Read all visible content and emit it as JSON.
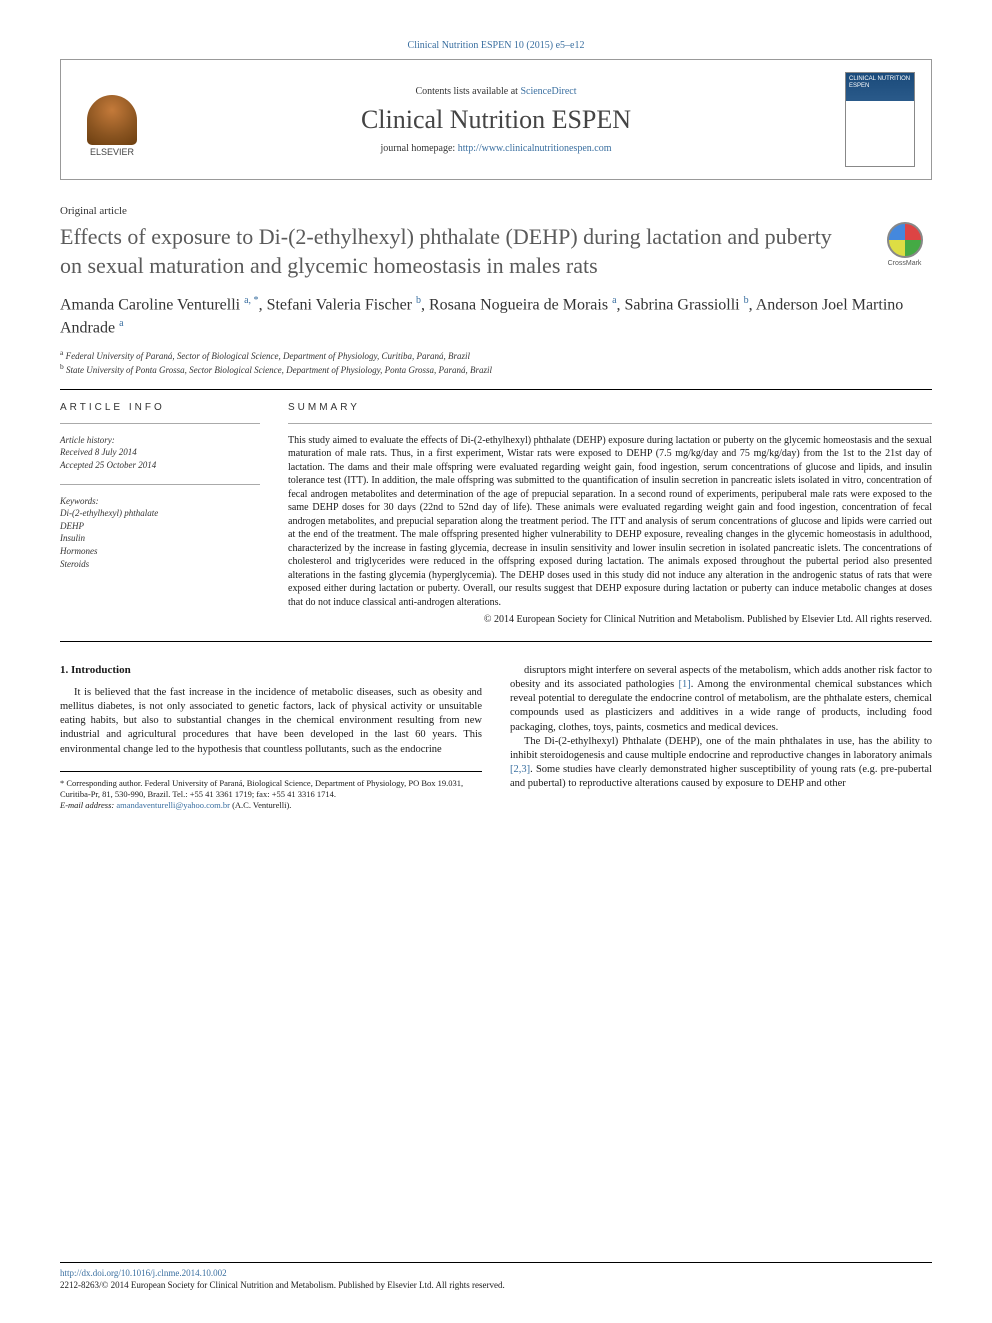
{
  "header": {
    "citation": "Clinical Nutrition ESPEN 10 (2015) e5–e12",
    "contents_prefix": "Contents lists available at ",
    "contents_link": "ScienceDirect",
    "journal_name": "Clinical Nutrition ESPEN",
    "homepage_prefix": "journal homepage: ",
    "homepage_url": "http://www.clinicalnutritionespen.com",
    "elsevier_label": "ELSEVIER",
    "cover_label": "CLINICAL NUTRITION ESPEN"
  },
  "crossmark": "CrossMark",
  "article": {
    "type": "Original article",
    "title": "Effects of exposure to Di-(2-ethylhexyl) phthalate (DEHP) during lactation and puberty on sexual maturation and glycemic homeostasis in males rats",
    "authors_html": "Amanda Caroline Venturelli <sup>a, *</sup>, Stefani Valeria Fischer <sup>b</sup>, Rosana Nogueira de Morais <sup>a</sup>, Sabrina Grassiolli <sup>b</sup>, Anderson Joel Martino Andrade <sup>a</sup>",
    "affiliations": {
      "a": "Federal University of Paraná, Sector of Biological Science, Department of Physiology, Curitiba, Paraná, Brazil",
      "b": "State University of Ponta Grossa, Sector Biological Science, Department of Physiology, Ponta Grossa, Paraná, Brazil"
    }
  },
  "info": {
    "heading": "ARTICLE INFO",
    "history_label": "Article history:",
    "received": "Received 8 July 2014",
    "accepted": "Accepted 25 October 2014",
    "keywords_label": "Keywords:",
    "keywords": [
      "Di-(2-ethylhexyl) phthalate",
      "DEHP",
      "Insulin",
      "Hormones",
      "Steroids"
    ]
  },
  "summary": {
    "heading": "SUMMARY",
    "text": "This study aimed to evaluate the effects of Di-(2-ethylhexyl) phthalate (DEHP) exposure during lactation or puberty on the glycemic homeostasis and the sexual maturation of male rats. Thus, in a first experiment, Wistar rats were exposed to DEHP (7.5 mg/kg/day and 75 mg/kg/day) from the 1st to the 21st day of lactation. The dams and their male offspring were evaluated regarding weight gain, food ingestion, serum concentrations of glucose and lipids, and insulin tolerance test (ITT). In addition, the male offspring was submitted to the quantification of insulin secretion in pancreatic islets isolated in vitro, concentration of fecal androgen metabolites and determination of the age of prepucial separation. In a second round of experiments, peripuberal male rats were exposed to the same DEHP doses for 30 days (22nd to 52nd day of life). These animals were evaluated regarding weight gain and food ingestion, concentration of fecal androgen metabolites, and prepucial separation along the treatment period. The ITT and analysis of serum concentrations of glucose and lipids were carried out at the end of the treatment. The male offspring presented higher vulnerability to DEHP exposure, revealing changes in the glycemic homeostasis in adulthood, characterized by the increase in fasting glycemia, decrease in insulin sensitivity and lower insulin secretion in isolated pancreatic islets. The concentrations of cholesterol and triglycerides were reduced in the offspring exposed during lactation. The animals exposed throughout the pubertal period also presented alterations in the fasting glycemia (hyperglycemia). The DEHP doses used in this study did not induce any alteration in the androgenic status of rats that were exposed either during lactation or puberty. Overall, our results suggest that DEHP exposure during lactation or puberty can induce metabolic changes at doses that do not induce classical anti-androgen alterations.",
    "copyright": "© 2014 European Society for Clinical Nutrition and Metabolism. Published by Elsevier Ltd. All rights reserved."
  },
  "body": {
    "introduction_heading": "1. Introduction",
    "left_p1": "It is believed that the fast increase in the incidence of metabolic diseases, such as obesity and mellitus diabetes, is not only associated to genetic factors, lack of physical activity or unsuitable eating habits, but also to substantial changes in the chemical environment resulting from new industrial and agricultural procedures that have been developed in the last 60 years. This environmental change led to the hypothesis that countless pollutants, such as the endocrine",
    "right_p1": "disruptors might interfere on several aspects of the metabolism, which adds another risk factor to obesity and its associated pathologies [1]. Among the environmental chemical substances which reveal potential to deregulate the endocrine control of metabolism, are the phthalate esters, chemical compounds used as plasticizers and additives in a wide range of products, including food packaging, clothes, toys, paints, cosmetics and medical devices.",
    "right_p2": "The Di-(2-ethylhexyl) Phthalate (DEHP), one of the main phthalates in use, has the ability to inhibit steroidogenesis and cause multiple endocrine and reproductive changes in laboratory animals [2,3]. Some studies have clearly demonstrated higher susceptibility of young rats (e.g. pre-pubertal and pubertal) to reproductive alterations caused by exposure to DEHP and other"
  },
  "corresponding": {
    "label": "* Corresponding author. Federal University of Paraná, Biological Science, Department of Physiology, PO Box 19.031, Curitiba-Pr, 81, 530-990, Brazil. Tel.: +55 41 3361 1719; fax: +55 41 3316 1714.",
    "email_label": "E-mail address: ",
    "email": "amandaventurelli@yahoo.com.br",
    "email_suffix": " (A.C. Venturelli)."
  },
  "footer": {
    "doi": "http://dx.doi.org/10.1016/j.clnme.2014.10.002",
    "issn_line": "2212-8263/© 2014 European Society for Clinical Nutrition and Metabolism. Published by Elsevier Ltd. All rights reserved."
  },
  "colors": {
    "link": "#3a6fa0",
    "title_gray": "#5a5a5a",
    "text": "#1a1a1a"
  }
}
